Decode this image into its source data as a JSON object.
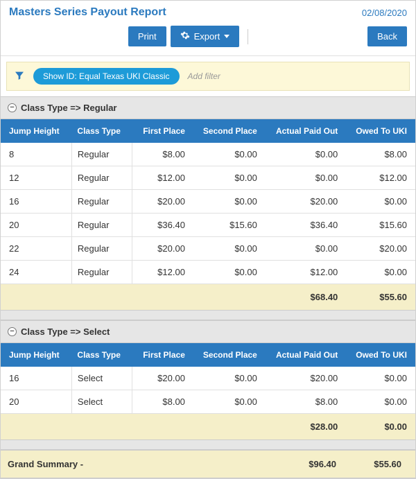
{
  "header": {
    "title": "Masters Series Payout Report",
    "date": "02/08/2020"
  },
  "toolbar": {
    "print": "Print",
    "export": "Export",
    "back": "Back"
  },
  "filter": {
    "pill": "Show ID: Equal Texas UKI Classic",
    "add_placeholder": "Add filter"
  },
  "columns": {
    "jump_height": "Jump Height",
    "class_type": "Class Type",
    "first_place": "First Place",
    "second_place": "Second Place",
    "actual_paid_out": "Actual Paid Out",
    "owed_to_uki": "Owed To UKI"
  },
  "groups": [
    {
      "label": "Class Type => Regular",
      "rows": [
        {
          "jump": "8",
          "ctype": "Regular",
          "first": "$8.00",
          "second": "$0.00",
          "paid": "$0.00",
          "owed": "$8.00"
        },
        {
          "jump": "12",
          "ctype": "Regular",
          "first": "$12.00",
          "second": "$0.00",
          "paid": "$0.00",
          "owed": "$12.00"
        },
        {
          "jump": "16",
          "ctype": "Regular",
          "first": "$20.00",
          "second": "$0.00",
          "paid": "$20.00",
          "owed": "$0.00"
        },
        {
          "jump": "20",
          "ctype": "Regular",
          "first": "$36.40",
          "second": "$15.60",
          "paid": "$36.40",
          "owed": "$15.60"
        },
        {
          "jump": "22",
          "ctype": "Regular",
          "first": "$20.00",
          "second": "$0.00",
          "paid": "$0.00",
          "owed": "$20.00"
        },
        {
          "jump": "24",
          "ctype": "Regular",
          "first": "$12.00",
          "second": "$0.00",
          "paid": "$12.00",
          "owed": "$0.00"
        }
      ],
      "subtotal": {
        "paid": "$68.40",
        "owed": "$55.60"
      }
    },
    {
      "label": "Class Type => Select",
      "rows": [
        {
          "jump": "16",
          "ctype": "Select",
          "first": "$20.00",
          "second": "$0.00",
          "paid": "$20.00",
          "owed": "$0.00"
        },
        {
          "jump": "20",
          "ctype": "Select",
          "first": "$8.00",
          "second": "$0.00",
          "paid": "$8.00",
          "owed": "$0.00"
        }
      ],
      "subtotal": {
        "paid": "$28.00",
        "owed": "$0.00"
      }
    }
  ],
  "grand": {
    "label": "Grand Summary -",
    "paid": "$96.40",
    "owed": "$55.60"
  },
  "colors": {
    "primary": "#2b7abf",
    "pill": "#1d9bd8",
    "filter_bg": "#fdf8d8",
    "subtotal_bg": "#f5efc9",
    "group_bg": "#e6e6e6"
  }
}
